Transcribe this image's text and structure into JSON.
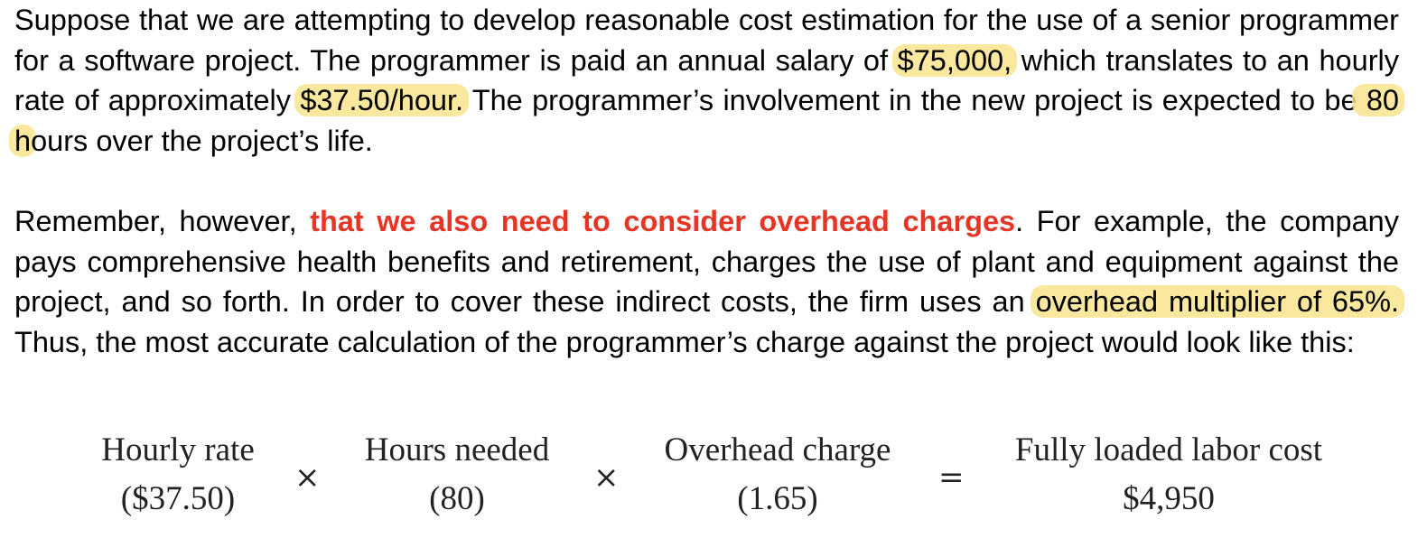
{
  "paragraph1": {
    "t1": "Suppose that we are attempting to develop reasonable cost estimation for the use of a senior programmer for a software project. The programmer is paid an annual salary of ",
    "h1": "$75,000,",
    "t2": " which translates to an hourly rate of approximately ",
    "h2": " $37.50/hour.",
    "t3": " The programmer’s involvement in the new project is expected to be",
    "h3": " 80 h",
    "t4": "ours over the project’s life."
  },
  "paragraph2": {
    "t1": "Remember, however, ",
    "emph": "that we also need to consider overhead charges",
    "t2": ". For example, the company pays comprehensive health benefits and retirement, charges the use of plant and equipment against the project, and so forth. In order to cover these indirect costs, the firm uses an ",
    "h1": "overhead multiplier of 65%. ",
    "t3": "Thus, the most accurate calculation of the programmer’s charge against the project would look like this:"
  },
  "formula": {
    "term1": {
      "label": "Hourly rate",
      "value": "($37.50)"
    },
    "op1": "×",
    "term2": {
      "label": "Hours needed",
      "value": "(80)"
    },
    "op2": "×",
    "term3": {
      "label": "Overhead charge",
      "value": "(1.65)"
    },
    "op3": "=",
    "result": {
      "label": "Fully loaded labor cost",
      "value": "$4,950"
    }
  },
  "colors": {
    "highlight": "#f8e48c",
    "emphasis": "#e53524"
  }
}
